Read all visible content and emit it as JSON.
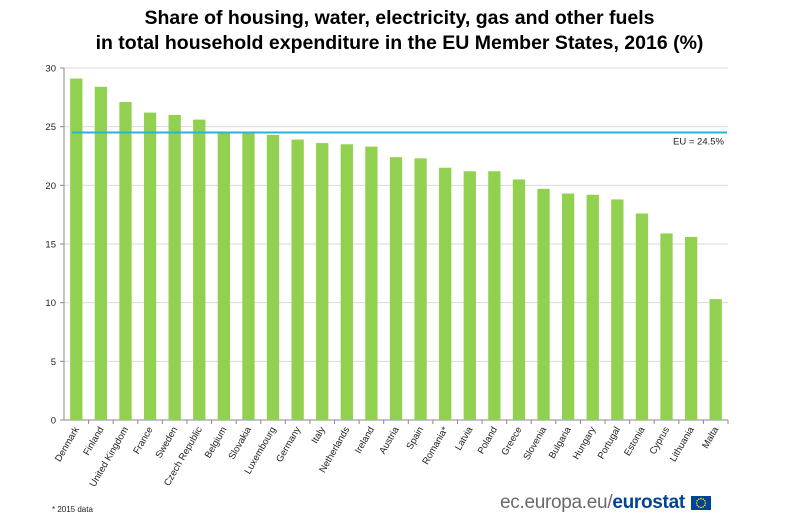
{
  "chart_data": {
    "type": "bar",
    "title": [
      "Share of housing, water, electricity, gas and other fuels",
      "in total household expenditure in the EU Member States, 2016 (%)"
    ],
    "categories": [
      "Denmark",
      "Finland",
      "United Kingdom",
      "France",
      "Sweden",
      "Czech Republic",
      "Belgium",
      "Slovakia",
      "Luxembourg",
      "Germany",
      "Italy",
      "Netherlands",
      "Ireland",
      "Austria",
      "Spain",
      "Romania*",
      "Latvia",
      "Poland",
      "Greece",
      "Slovenia",
      "Bulgaria",
      "Hungary",
      "Portugal",
      "Estonia",
      "Cyprus",
      "Lithuania",
      "Malta"
    ],
    "values": [
      29.1,
      28.4,
      27.1,
      26.2,
      26.0,
      25.6,
      24.5,
      24.5,
      24.3,
      23.9,
      23.6,
      23.5,
      23.3,
      22.4,
      22.3,
      21.5,
      21.2,
      21.2,
      20.5,
      19.7,
      19.3,
      19.2,
      18.8,
      17.6,
      15.9,
      15.6,
      10.3
    ],
    "ylim": [
      0,
      30
    ],
    "yticks": [
      0,
      5,
      10,
      15,
      20,
      25,
      30
    ],
    "ytick_labels": [
      "0",
      "5",
      "10",
      "15",
      "20",
      "25",
      "30"
    ],
    "grid": true,
    "bar_color": "#92D050",
    "reference_line": {
      "value": 24.5,
      "label": "EU = 24.5%",
      "color": "#27B4DA"
    }
  },
  "footnote": "* 2015 data",
  "brand": {
    "domain": "ec.europa.eu/",
    "name": "eurostat",
    "flag": "eu-flag-icon"
  }
}
